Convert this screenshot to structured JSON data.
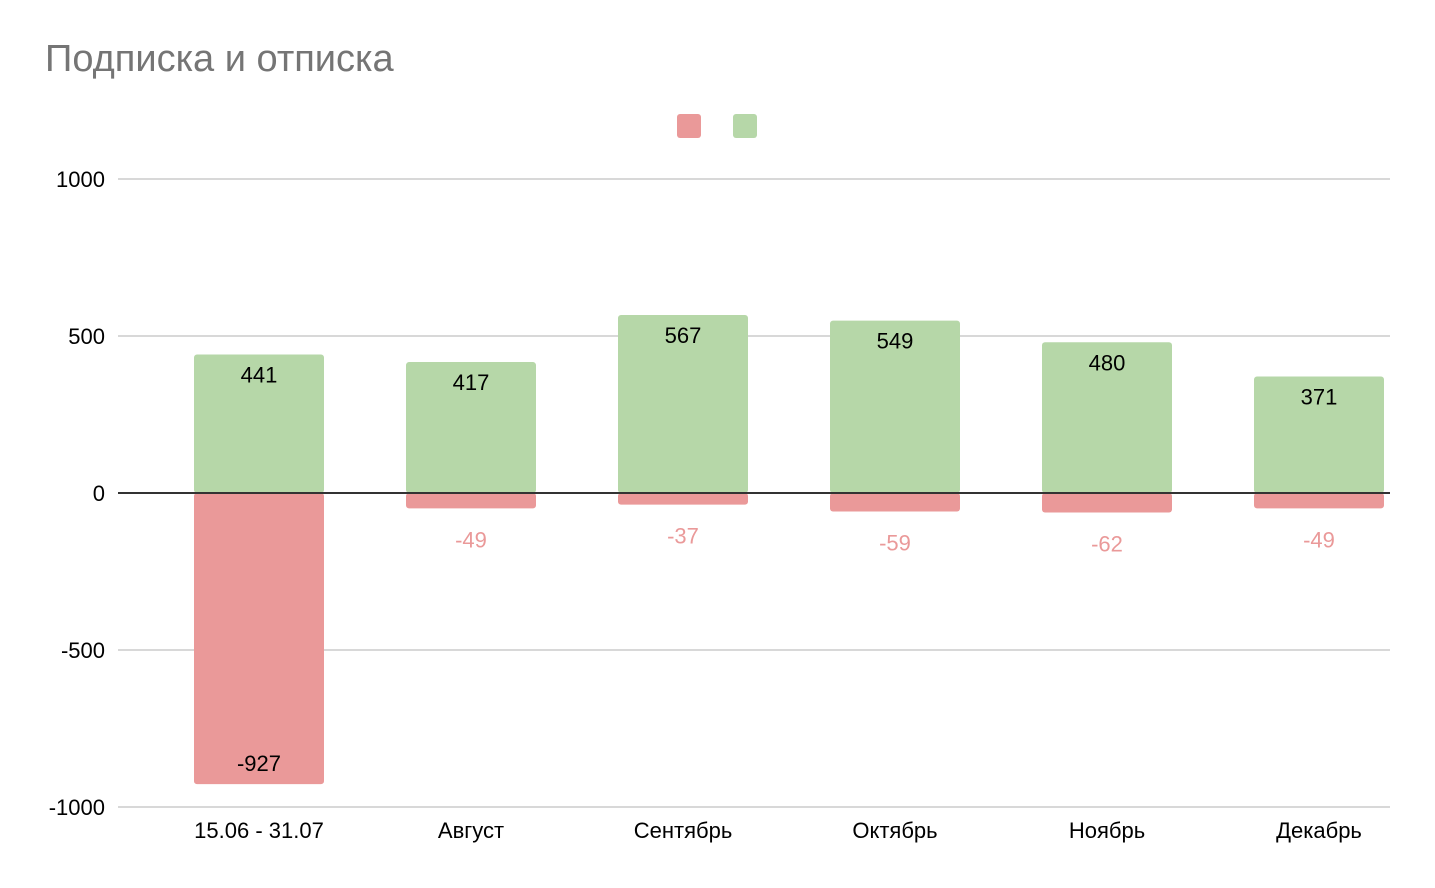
{
  "chart_data": {
    "type": "bar",
    "title": "Подписка и отписка",
    "categories": [
      "15.06 - 31.07",
      "Август",
      "Сентябрь",
      "Октябрь",
      "Ноябрь",
      "Декабрь"
    ],
    "series": [
      {
        "values": [
          -927,
          -49,
          -37,
          -59,
          -62,
          -49
        ],
        "color": "#ea9999",
        "label_color_inside": "#000000",
        "label_color_outside": "#ea9999"
      },
      {
        "values": [
          441,
          417,
          567,
          549,
          480,
          371
        ],
        "color": "#b6d7a8",
        "label_color_inside": "#000000"
      }
    ],
    "ylim": [
      -1000,
      1000
    ],
    "yticks": [
      1000,
      500,
      0,
      -500,
      -1000
    ],
    "xlabel": "",
    "ylabel": "",
    "grid": true,
    "legend_position": "top-center",
    "grid_color": "#cccccc",
    "zero_line_color": "#333333"
  }
}
